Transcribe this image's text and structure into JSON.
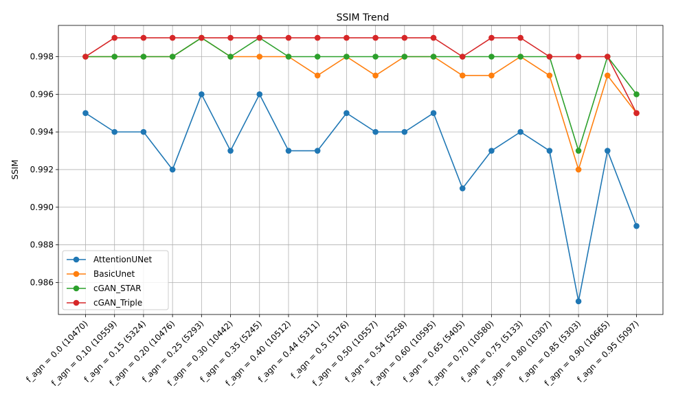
{
  "chart_data": {
    "type": "line",
    "title": "SSIM Trend",
    "xlabel": "",
    "ylabel": "SSIM",
    "grid": true,
    "legend_position": "bottom-left",
    "ylim": [
      0.9843,
      0.99966
    ],
    "yticks": [
      "0.986",
      "0.988",
      "0.990",
      "0.992",
      "0.994",
      "0.996",
      "0.998"
    ],
    "categories": [
      "f_agn = 0.0 (10470)",
      "f_agn = 0.10 (10559)",
      "f_agn = 0.15 (5324)",
      "f_agn = 0.20 (10476)",
      "f_agn = 0.25 (5293)",
      "f_agn = 0.30 (10442)",
      "f_agn = 0.35 (5245)",
      "f_agn = 0.40 (10512)",
      "f_agn = 0.44 (5311)",
      "f_agn = 0.5 (5176)",
      "f_agn = 0.50 (10557)",
      "f_agn = 0.54 (5258)",
      "f_agn = 0.60 (10595)",
      "f_agn = 0.65 (5405)",
      "f_agn = 0.70 (10580)",
      "f_agn = 0.75 (5133)",
      "f_agn = 0.80 (10307)",
      "f_agn = 0.85 (5303)",
      "f_agn = 0.90 (10665)",
      "f_agn = 0.95 (5097)"
    ],
    "series": [
      {
        "name": "AttentionUNet",
        "color": "#1f77b4",
        "values": [
          0.995,
          0.994,
          0.994,
          0.992,
          0.996,
          0.993,
          0.996,
          0.993,
          0.993,
          0.995,
          0.994,
          0.994,
          0.995,
          0.991,
          0.993,
          0.994,
          0.993,
          0.985,
          0.993,
          0.989
        ]
      },
      {
        "name": "BasicUnet",
        "color": "#ff7f0e",
        "values": [
          0.998,
          0.998,
          0.998,
          0.998,
          0.999,
          0.998,
          0.998,
          0.998,
          0.997,
          0.998,
          0.997,
          0.998,
          0.998,
          0.997,
          0.997,
          0.998,
          0.997,
          0.992,
          0.997,
          0.995
        ]
      },
      {
        "name": "cGAN_STAR",
        "color": "#2ca02c",
        "values": [
          0.998,
          0.998,
          0.998,
          0.998,
          0.999,
          0.998,
          0.999,
          0.998,
          0.998,
          0.998,
          0.998,
          0.998,
          0.998,
          0.998,
          0.998,
          0.998,
          0.998,
          0.993,
          0.998,
          0.996
        ]
      },
      {
        "name": "cGAN_Triple",
        "color": "#d62728",
        "values": [
          0.998,
          0.999,
          0.999,
          0.999,
          0.999,
          0.999,
          0.999,
          0.999,
          0.999,
          0.999,
          0.999,
          0.999,
          0.999,
          0.998,
          0.999,
          0.999,
          0.998,
          0.998,
          0.998,
          0.995
        ]
      }
    ]
  }
}
